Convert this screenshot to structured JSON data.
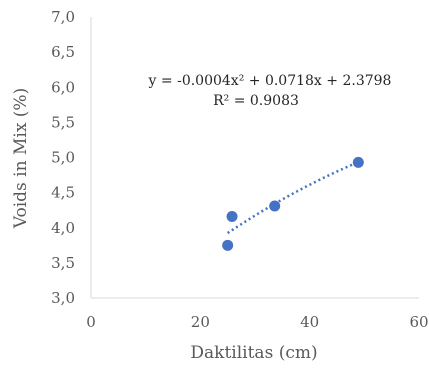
{
  "chart_data": {
    "type": "scatter",
    "xlabel": "Daktilitas (cm)",
    "ylabel": "Voids in Mix (%)",
    "xlim": [
      0,
      60
    ],
    "ylim": [
      3.0,
      7.0
    ],
    "x_ticks": [
      0,
      20,
      40,
      60
    ],
    "x_tick_labels": [
      "0",
      "20",
      "40",
      "60"
    ],
    "y_ticks": [
      3.0,
      3.5,
      4.0,
      4.5,
      5.0,
      5.5,
      6.0,
      6.5,
      7.0
    ],
    "y_tick_labels": [
      "3,0",
      "3,5",
      "4,0",
      "4,5",
      "5,0",
      "5,5",
      "6,0",
      "6,5",
      "7,0"
    ],
    "grid": false,
    "series": [
      {
        "color": "#4472c4",
        "points": [
          {
            "x": 25.0,
            "y": 3.75
          },
          {
            "x": 25.8,
            "y": 4.16
          },
          {
            "x": 33.6,
            "y": 4.31
          },
          {
            "x": 48.9,
            "y": 4.93
          }
        ]
      }
    ],
    "trendline": {
      "type": "polynomial",
      "coefficients": [
        -0.0004,
        0.0718,
        2.3798
      ],
      "x_range": [
        25.0,
        48.9
      ],
      "color": "#4472c4",
      "equation": "y = -0.0004x² + 0.0718x + 2.3798",
      "r_squared": "R² = 0.9083"
    }
  }
}
